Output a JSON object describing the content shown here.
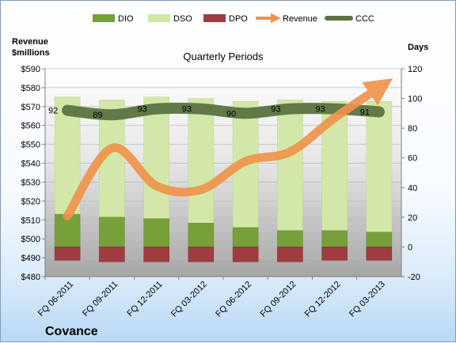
{
  "chart_data": {
    "type": "bar",
    "title": "Quarterly Periods",
    "company": "Covance",
    "categories": [
      "FQ 06-2011",
      "FQ 09-2011",
      "FQ 12-2011",
      "FQ 03-2012",
      "FQ 06-2012",
      "FQ 09-2012",
      "FQ 12-2012",
      "FQ 03-2013"
    ],
    "left_axis": {
      "label": "Revenue\n$millions",
      "range": [
        480,
        590
      ],
      "step": 10,
      "tick_prefix": "$"
    },
    "right_axis": {
      "label": "Days",
      "range": [
        -20,
        120
      ],
      "step": 20
    },
    "series": [
      {
        "name": "DIO",
        "type": "bar",
        "axis": "right",
        "color": "#77a03a",
        "values": [
          22,
          20,
          19,
          16,
          13,
          11,
          11,
          10
        ]
      },
      {
        "name": "DSO",
        "type": "bar",
        "axis": "right",
        "color": "#d3e8a8",
        "values": [
          79,
          79,
          82,
          84,
          85,
          88,
          87,
          88
        ]
      },
      {
        "name": "DPO",
        "type": "bar",
        "axis": "right",
        "color": "#a03c40",
        "values": [
          -9,
          -10,
          -10,
          -10,
          -10,
          -10,
          -9,
          -9
        ]
      },
      {
        "name": "Revenue",
        "type": "line",
        "axis": "left",
        "color": "#f0924a",
        "values": [
          512,
          548,
          528,
          526,
          541,
          546,
          564,
          580
        ]
      },
      {
        "name": "CCC",
        "type": "line",
        "axis": "right",
        "color": "#5a7340",
        "values": [
          92,
          89,
          93,
          93,
          90,
          93,
          93,
          91
        ],
        "labels": [
          "92",
          "89",
          "93",
          "93",
          "90",
          "93",
          "93",
          "91"
        ]
      }
    ],
    "legend": [
      "DIO",
      "DSO",
      "DPO",
      "Revenue",
      "CCC"
    ],
    "legend_position": "top"
  }
}
